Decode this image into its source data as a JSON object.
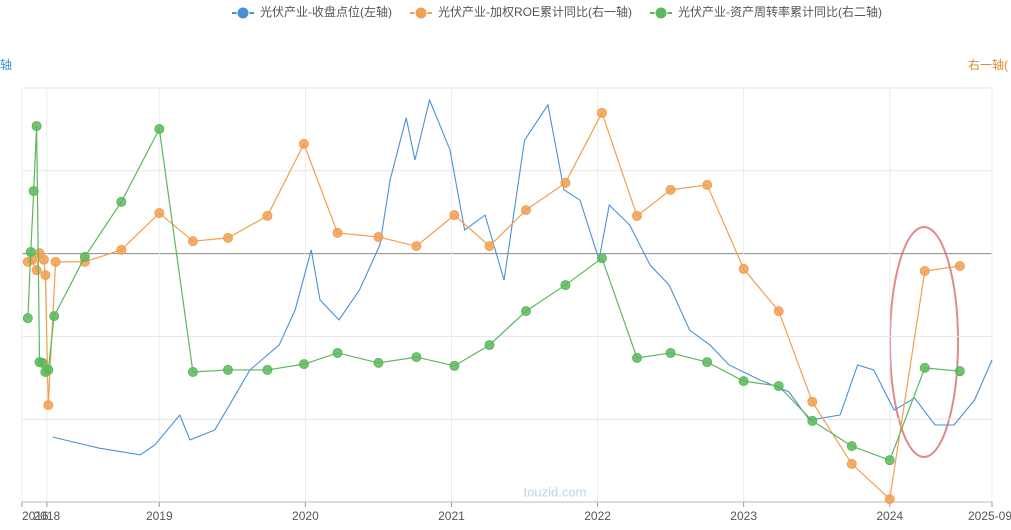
{
  "chart_data": {
    "type": "line",
    "legend_position": "top",
    "y_label": "轴",
    "y2_label": "右一轴(",
    "watermark": "touzid.com",
    "xlim": [
      2018.06,
      2024.7
    ],
    "xticks": [
      {
        "value": 2018.06,
        "label": "2016"
      },
      {
        "value": 2018.23,
        "label": "2018"
      },
      {
        "value": 2019,
        "label": "2019"
      },
      {
        "value": 2020,
        "label": "2020"
      },
      {
        "value": 2021,
        "label": "2021"
      },
      {
        "value": 2022,
        "label": "2022"
      },
      {
        "value": 2023,
        "label": "2023"
      },
      {
        "value": 2024,
        "label": "2024"
      },
      {
        "value": 2024.7,
        "label": "2025-09-"
      }
    ],
    "ylim": [
      0,
      100
    ],
    "y2lim": [
      0,
      100
    ],
    "y3lim": [
      0,
      100
    ],
    "grid": true,
    "series": [
      {
        "name": "光伏产业-收盘点位(左轴)",
        "color": "#4a90d9",
        "axis": "y",
        "markers": false,
        "x": [
          2018.27,
          2018.35,
          2018.59,
          2018.87,
          2018.97,
          2019.14,
          2019.21,
          2019.38,
          2019.52,
          2019.62,
          2019.82,
          2019.93,
          2020.04,
          2020.1,
          2020.23,
          2020.37,
          2020.51,
          2020.58,
          2020.69,
          2020.75,
          2020.85,
          2020.99,
          2021.09,
          2021.23,
          2021.36,
          2021.5,
          2021.66,
          2021.77,
          2021.88,
          2022.01,
          2022.08,
          2022.22,
          2022.36,
          2022.49,
          2022.63,
          2022.77,
          2022.9,
          2023.11,
          2023.31,
          2023.45,
          2023.66,
          2023.78,
          2023.89,
          2024.03,
          2024.17,
          2024.31,
          2024.44,
          2024.58,
          2024.7
        ],
        "values": [
          15.7,
          15.0,
          13.0,
          11.4,
          13.8,
          21.0,
          15.0,
          17.4,
          25.8,
          31.9,
          37.9,
          46.4,
          60.9,
          48.8,
          44.0,
          51.2,
          62.1,
          77.8,
          92.8,
          82.6,
          97.1,
          85.0,
          65.7,
          69.3,
          53.6,
          87.4,
          95.9,
          75.4,
          72.9,
          58.5,
          71.7,
          66.9,
          57.2,
          52.4,
          41.5,
          37.9,
          33.1,
          29.5,
          26.6,
          19.8,
          21.0,
          33.1,
          31.9,
          22.2,
          25.1,
          18.6,
          18.6,
          24.6,
          34.3
        ]
      },
      {
        "name": "光伏产业-加权ROE累计同比(右一轴)",
        "color": "#f0a050",
        "axis": "y2",
        "markers": true,
        "x": [
          2018.1,
          2018.13,
          2018.16,
          2018.18,
          2018.21,
          2018.22,
          2018.24,
          2018.29,
          2018.49,
          2018.74,
          2019.0,
          2019.23,
          2019.47,
          2019.74,
          2019.99,
          2020.22,
          2020.5,
          2020.76,
          2021.02,
          2021.26,
          2021.51,
          2021.78,
          2022.03,
          2022.27,
          2022.5,
          2022.75,
          2023.0,
          2023.24,
          2023.47,
          2023.74,
          2024.0,
          2024.24,
          2024.48
        ],
        "values": [
          58.0,
          58.5,
          56.0,
          60.1,
          58.5,
          54.8,
          23.4,
          58.0,
          58.0,
          60.9,
          69.8,
          63.0,
          63.8,
          69.1,
          86.5,
          65.0,
          64.0,
          61.8,
          69.3,
          61.8,
          70.5,
          77.1,
          94.0,
          69.1,
          75.4,
          76.6,
          56.3,
          46.1,
          24.2,
          9.2,
          0.7,
          55.8,
          57.0
        ]
      },
      {
        "name": "光伏产业-资产周转率累计同比(右二轴)",
        "color": "#5cb85c",
        "axis": "y3",
        "markers": true,
        "x": [
          2018.1,
          2018.12,
          2018.14,
          2018.16,
          2018.18,
          2018.2,
          2018.22,
          2018.24,
          2018.28,
          2018.49,
          2018.74,
          2019.0,
          2019.23,
          2019.47,
          2019.74,
          2019.99,
          2020.22,
          2020.5,
          2020.76,
          2021.02,
          2021.26,
          2021.51,
          2021.78,
          2022.03,
          2022.27,
          2022.5,
          2022.75,
          2023.0,
          2023.24,
          2023.47,
          2023.74,
          2024.0,
          2024.24,
          2024.48
        ],
        "values": [
          44.4,
          60.4,
          75.1,
          90.8,
          33.8,
          33.6,
          31.4,
          31.9,
          44.9,
          59.2,
          72.5,
          90.1,
          31.4,
          31.9,
          31.9,
          33.3,
          36.0,
          33.6,
          35.0,
          32.9,
          37.9,
          46.1,
          52.4,
          58.9,
          34.8,
          36.0,
          33.8,
          29.2,
          28.0,
          19.6,
          13.5,
          10.1,
          32.4,
          31.6
        ]
      }
    ]
  }
}
